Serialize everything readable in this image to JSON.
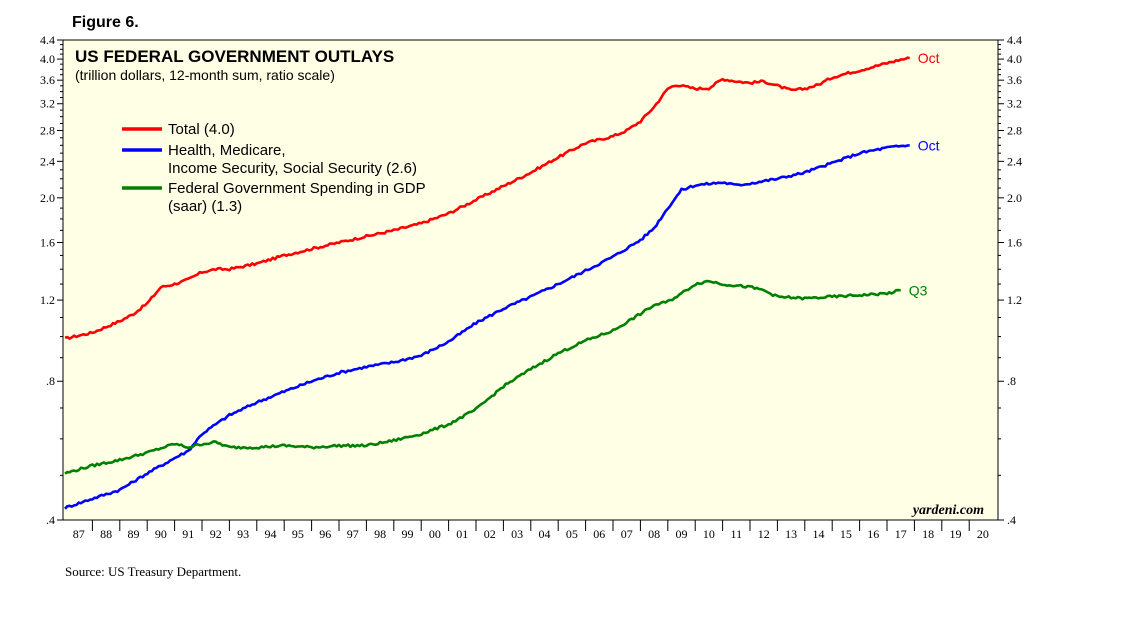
{
  "figure_label": "Figure 6.",
  "source": "Source: US Treasury Department.",
  "chart_data": {
    "type": "line",
    "title": "US FEDERAL GOVERNMENT OUTLAYS",
    "subtitle": "(trillion dollars, 12-month sum, ratio scale)",
    "watermark": "yardeni.com",
    "y_scale": "log",
    "ylim": [
      0.4,
      4.4
    ],
    "y_ticks": [
      0.4,
      0.8,
      1.2,
      1.6,
      2.0,
      2.4,
      2.8,
      3.2,
      3.6,
      4.0,
      4.4
    ],
    "y_tick_labels": [
      ".4",
      ".8",
      "1.2",
      "1.6",
      "2.0",
      "2.4",
      "2.8",
      "3.2",
      "3.6",
      "4.0",
      "4.4"
    ],
    "xlim": [
      1987,
      2021
    ],
    "x_tick_labels": [
      "87",
      "88",
      "89",
      "90",
      "91",
      "92",
      "93",
      "94",
      "95",
      "96",
      "97",
      "98",
      "99",
      "00",
      "01",
      "02",
      "03",
      "04",
      "05",
      "06",
      "07",
      "08",
      "09",
      "10",
      "11",
      "12",
      "13",
      "14",
      "15",
      "16",
      "17",
      "18",
      "19",
      "20"
    ],
    "grid": false,
    "background": "#ffffe6",
    "legend_position": "top-left",
    "series": [
      {
        "name": "Total (4.0)",
        "color": "#ff0000",
        "end_label": "Oct",
        "points": [
          [
            1987.0,
            0.99
          ],
          [
            1988.0,
            1.02
          ],
          [
            1989.0,
            1.08
          ],
          [
            1989.5,
            1.12
          ],
          [
            1990.0,
            1.18
          ],
          [
            1990.5,
            1.28
          ],
          [
            1991.0,
            1.3
          ],
          [
            1991.5,
            1.33
          ],
          [
            1992.0,
            1.38
          ],
          [
            1992.5,
            1.4
          ],
          [
            1993.0,
            1.4
          ],
          [
            1994.0,
            1.44
          ],
          [
            1995.0,
            1.5
          ],
          [
            1996.0,
            1.55
          ],
          [
            1997.0,
            1.6
          ],
          [
            1998.0,
            1.65
          ],
          [
            1999.0,
            1.7
          ],
          [
            2000.0,
            1.76
          ],
          [
            2001.0,
            1.85
          ],
          [
            2002.0,
            1.98
          ],
          [
            2003.0,
            2.12
          ],
          [
            2004.0,
            2.27
          ],
          [
            2005.0,
            2.45
          ],
          [
            2006.0,
            2.63
          ],
          [
            2007.0,
            2.72
          ],
          [
            2007.5,
            2.8
          ],
          [
            2008.0,
            2.93
          ],
          [
            2008.5,
            3.15
          ],
          [
            2009.0,
            3.45
          ],
          [
            2009.3,
            3.52
          ],
          [
            2010.0,
            3.45
          ],
          [
            2010.5,
            3.46
          ],
          [
            2011.0,
            3.62
          ],
          [
            2011.5,
            3.58
          ],
          [
            2012.0,
            3.55
          ],
          [
            2012.5,
            3.58
          ],
          [
            2013.0,
            3.5
          ],
          [
            2013.5,
            3.42
          ],
          [
            2014.0,
            3.45
          ],
          [
            2014.5,
            3.52
          ],
          [
            2015.0,
            3.65
          ],
          [
            2015.5,
            3.72
          ],
          [
            2016.0,
            3.78
          ],
          [
            2016.5,
            3.85
          ],
          [
            2017.0,
            3.92
          ],
          [
            2017.5,
            3.99
          ],
          [
            2017.83,
            4.02
          ]
        ]
      },
      {
        "name": "Health, Medicare, Income Security, Social Security (2.6)",
        "label_lines": [
          "Health, Medicare,",
          "Income Security, Social Security (2.6)"
        ],
        "color": "#0000ff",
        "end_label": "Oct",
        "points": [
          [
            1987.0,
            0.425
          ],
          [
            1988.0,
            0.445
          ],
          [
            1989.0,
            0.465
          ],
          [
            1990.0,
            0.505
          ],
          [
            1991.0,
            0.545
          ],
          [
            1991.5,
            0.565
          ],
          [
            1992.0,
            0.615
          ],
          [
            1992.5,
            0.645
          ],
          [
            1993.0,
            0.675
          ],
          [
            1994.0,
            0.72
          ],
          [
            1995.0,
            0.76
          ],
          [
            1996.0,
            0.8
          ],
          [
            1997.0,
            0.835
          ],
          [
            1998.0,
            0.86
          ],
          [
            1999.0,
            0.88
          ],
          [
            2000.0,
            0.91
          ],
          [
            2001.0,
            0.975
          ],
          [
            2002.0,
            1.07
          ],
          [
            2003.0,
            1.15
          ],
          [
            2004.0,
            1.22
          ],
          [
            2005.0,
            1.3
          ],
          [
            2006.0,
            1.39
          ],
          [
            2007.0,
            1.49
          ],
          [
            2008.0,
            1.62
          ],
          [
            2008.5,
            1.72
          ],
          [
            2009.0,
            1.9
          ],
          [
            2009.5,
            2.08
          ],
          [
            2010.0,
            2.13
          ],
          [
            2011.0,
            2.16
          ],
          [
            2011.5,
            2.13
          ],
          [
            2012.0,
            2.15
          ],
          [
            2013.0,
            2.2
          ],
          [
            2014.0,
            2.27
          ],
          [
            2015.0,
            2.38
          ],
          [
            2016.0,
            2.5
          ],
          [
            2017.0,
            2.57
          ],
          [
            2017.83,
            2.6
          ]
        ]
      },
      {
        "name": "Federal Government Spending in GDP (saar) (1.3)",
        "label_lines": [
          "Federal Government Spending in GDP",
          "(saar) (1.3)"
        ],
        "color": "#008000",
        "end_label": "Q3",
        "points": [
          [
            1987.0,
            0.505
          ],
          [
            1988.0,
            0.525
          ],
          [
            1989.0,
            0.54
          ],
          [
            1990.0,
            0.56
          ],
          [
            1991.0,
            0.585
          ],
          [
            1991.5,
            0.575
          ],
          [
            1992.0,
            0.585
          ],
          [
            1992.5,
            0.59
          ],
          [
            1993.0,
            0.575
          ],
          [
            1994.0,
            0.575
          ],
          [
            1995.0,
            0.58
          ],
          [
            1996.0,
            0.575
          ],
          [
            1997.0,
            0.58
          ],
          [
            1998.0,
            0.58
          ],
          [
            1999.0,
            0.595
          ],
          [
            2000.0,
            0.615
          ],
          [
            2001.0,
            0.645
          ],
          [
            2002.0,
            0.695
          ],
          [
            2003.0,
            0.78
          ],
          [
            2004.0,
            0.85
          ],
          [
            2005.0,
            0.92
          ],
          [
            2006.0,
            0.98
          ],
          [
            2007.0,
            1.03
          ],
          [
            2008.0,
            1.12
          ],
          [
            2008.5,
            1.17
          ],
          [
            2009.0,
            1.19
          ],
          [
            2009.5,
            1.24
          ],
          [
            2010.0,
            1.3
          ],
          [
            2010.5,
            1.32
          ],
          [
            2011.0,
            1.3
          ],
          [
            2012.0,
            1.28
          ],
          [
            2012.5,
            1.26
          ],
          [
            2013.0,
            1.22
          ],
          [
            2014.0,
            1.21
          ],
          [
            2015.0,
            1.22
          ],
          [
            2016.0,
            1.23
          ],
          [
            2017.0,
            1.24
          ],
          [
            2017.5,
            1.26
          ]
        ]
      }
    ]
  }
}
